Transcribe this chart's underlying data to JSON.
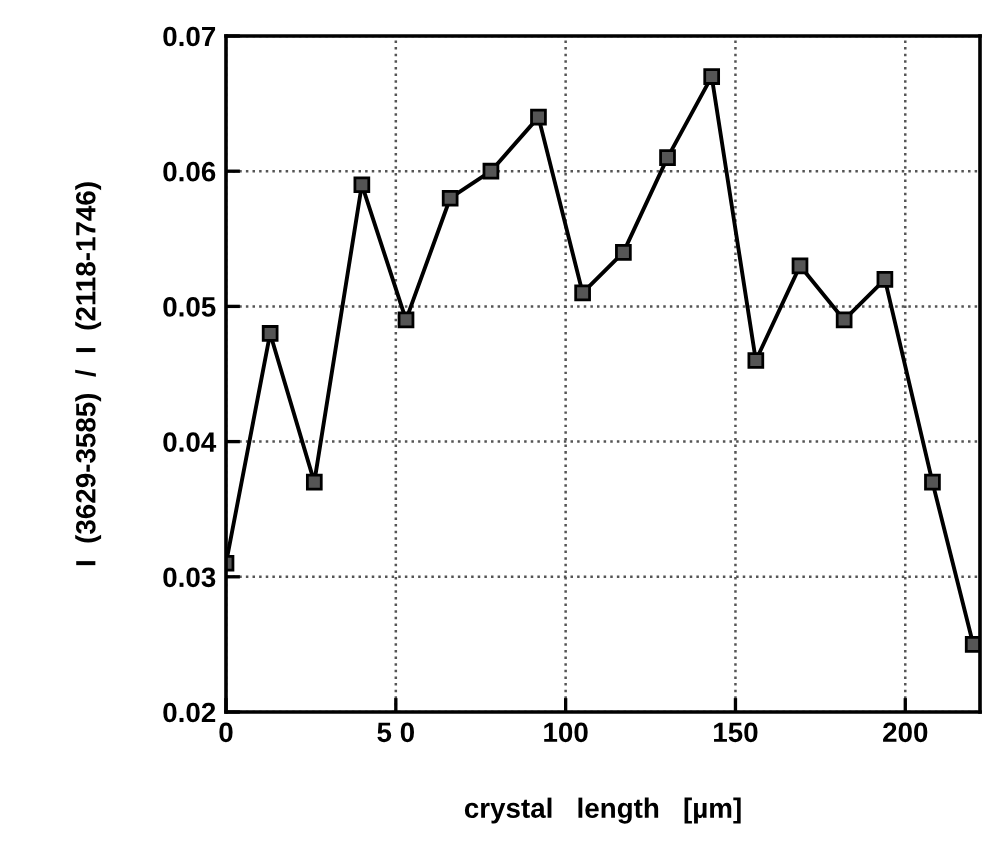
{
  "chart_data": {
    "type": "line",
    "xlabel": "crystal   length   [µm]",
    "ylabel": "I  (3629-3585)  /  I  (2118-1746)",
    "x": [
      0,
      13,
      26,
      40,
      53,
      66,
      78,
      92,
      105,
      117,
      130,
      143,
      156,
      169,
      182,
      194,
      208,
      220
    ],
    "series": [
      {
        "color": "#000000",
        "values": [
          0.031,
          0.048,
          0.037,
          0.059,
          0.049,
          0.058,
          0.06,
          0.064,
          0.051,
          0.054,
          0.061,
          0.067,
          0.046,
          0.053,
          0.049,
          0.052,
          0.037,
          0.025
        ]
      }
    ],
    "xlim": [
      0,
      222
    ],
    "xticks": [
      0,
      {
        "value": 50,
        "label": "5 0"
      },
      100,
      150,
      200
    ],
    "ylim": [
      0.02,
      0.07
    ],
    "yticks": [
      0.02,
      0.03,
      0.04,
      0.05,
      0.06,
      0.07
    ],
    "grid": true,
    "marker": "square",
    "line_style": "solid"
  }
}
